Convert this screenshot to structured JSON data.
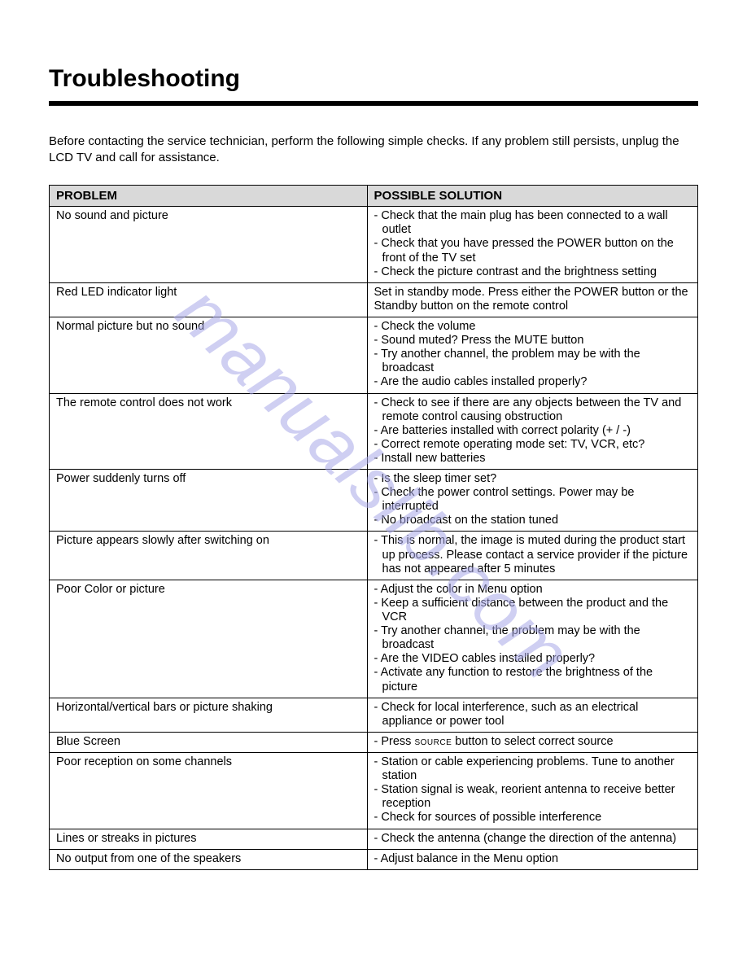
{
  "title": "Troubleshooting",
  "intro": "Before contacting the service technician, perform the following simple checks. If any problem still persists, unplug the LCD TV and call for assistance.",
  "watermark": "manualslib.com",
  "table": {
    "columns": [
      "PROBLEM",
      "POSSIBLE SOLUTION"
    ],
    "header_bg": "#d9d9d9",
    "border_color": "#000000",
    "column_widths": [
      "49%",
      "51%"
    ],
    "font_size": 14.5,
    "rows": [
      {
        "problem": "No sound and picture",
        "solutions": [
          "Check that the main plug has been connected to a wall outlet",
          "Check that you have pressed the POWER button on the front of the TV set",
          "Check the picture contrast and the brightness setting"
        ],
        "style": "dashed"
      },
      {
        "problem": "Red LED indicator light",
        "solutions": [
          "Set in standby mode.  Press either the POWER button or the Standby button on the remote control"
        ],
        "style": "plain"
      },
      {
        "problem": "Normal picture but no sound",
        "solutions": [
          "Check the volume",
          "Sound muted?  Press the MUTE button",
          "Try another channel, the problem may be with the broadcast",
          "Are the audio cables installed properly?"
        ],
        "style": "dashed"
      },
      {
        "problem": "The remote control does not work",
        "solutions": [
          "Check to see if there are any objects between the TV and remote control causing obstruction",
          "Are batteries installed with correct polarity (+ / -)",
          "Correct remote operating mode set:  TV, VCR, etc?",
          "Install new batteries"
        ],
        "style": "dashed"
      },
      {
        "problem": "Power suddenly turns off",
        "solutions": [
          "Is the sleep timer set?",
          "Check the power control settings.  Power may be interrupted",
          "No broadcast on the station tuned"
        ],
        "style": "dashed"
      },
      {
        "problem": "Picture appears slowly after switching on",
        "solutions": [
          "This is normal, the image is muted during the product start up process.  Please contact a service provider if the picture has not appeared after 5 minutes"
        ],
        "style": "dashed"
      },
      {
        "problem": "Poor Color or picture",
        "solutions": [
          "Adjust the color in Menu option",
          "Keep a sufficient distance between the product and the VCR",
          "Try another channel, the problem may be with the broadcast",
          "Are the VIDEO cables installed properly?",
          "Activate any function to restore the brightness of the picture"
        ],
        "style": "dashed"
      },
      {
        "problem": "Horizontal/vertical bars or picture shaking",
        "solutions": [
          "Check for local interference, such as an electrical appliance or power tool"
        ],
        "style": "dashed"
      },
      {
        "problem": "Blue Screen",
        "solutions": [
          "Press SOURCE button to select correct source"
        ],
        "style": "dashed",
        "smallcaps_word": "SOURCE"
      },
      {
        "problem": "Poor reception on some channels",
        "solutions": [
          "Station or cable experiencing problems.  Tune to another station",
          "Station signal is weak, reorient antenna to receive better reception",
          "Check for sources of possible interference"
        ],
        "style": "dashed"
      },
      {
        "problem": "Lines or streaks in pictures",
        "solutions": [
          "Check the antenna (change the direction of the antenna)"
        ],
        "style": "dashed"
      },
      {
        "problem": "No output from one of the speakers",
        "solutions": [
          "Adjust balance in the Menu option"
        ],
        "style": "dashed"
      }
    ]
  },
  "colors": {
    "text": "#000000",
    "background": "#ffffff",
    "watermark": "#a9a9e8"
  }
}
